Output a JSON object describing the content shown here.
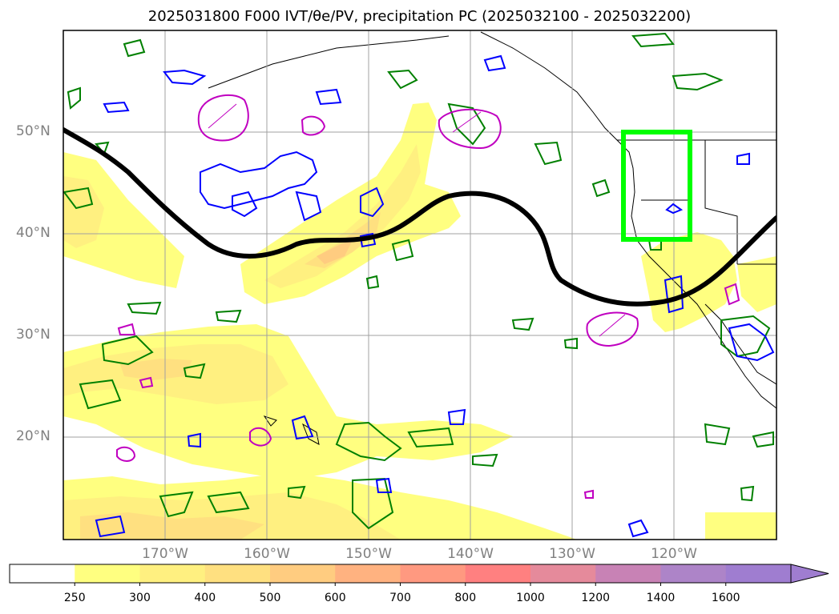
{
  "title": "2025031800 F000 IVT/θe/PV, precipitation PC (2025032100 - 2025032200)",
  "map": {
    "lat_labels": [
      "50°N",
      "40°N",
      "30°N",
      "20°N"
    ],
    "lon_labels": [
      "170°W",
      "160°W",
      "150°W",
      "140°W",
      "130°W",
      "120°W"
    ],
    "lat_range": [
      10,
      60
    ],
    "lon_range": [
      -180,
      -110
    ],
    "highlight_box": {
      "lon": [
        -125,
        -118.5
      ],
      "lat": [
        39.5,
        50
      ],
      "color": "#00ff00"
    },
    "contour_colors": {
      "theta_e": "#000000",
      "pv_positive": "#008000",
      "pv_negative": "#0000ff",
      "precip": "#c000c0"
    }
  },
  "colorbar": {
    "ticks": [
      "250",
      "300",
      "400",
      "500",
      "600",
      "700",
      "800",
      "1000",
      "1200",
      "1400",
      "1600"
    ],
    "colors": [
      "#ffffff",
      "#ffff80",
      "#fff080",
      "#ffe080",
      "#ffcc80",
      "#ffb280",
      "#ff9980",
      "#ff8080",
      "#e58a9b",
      "#c882b5",
      "#ad84c8",
      "#9f7dd0"
    ]
  }
}
